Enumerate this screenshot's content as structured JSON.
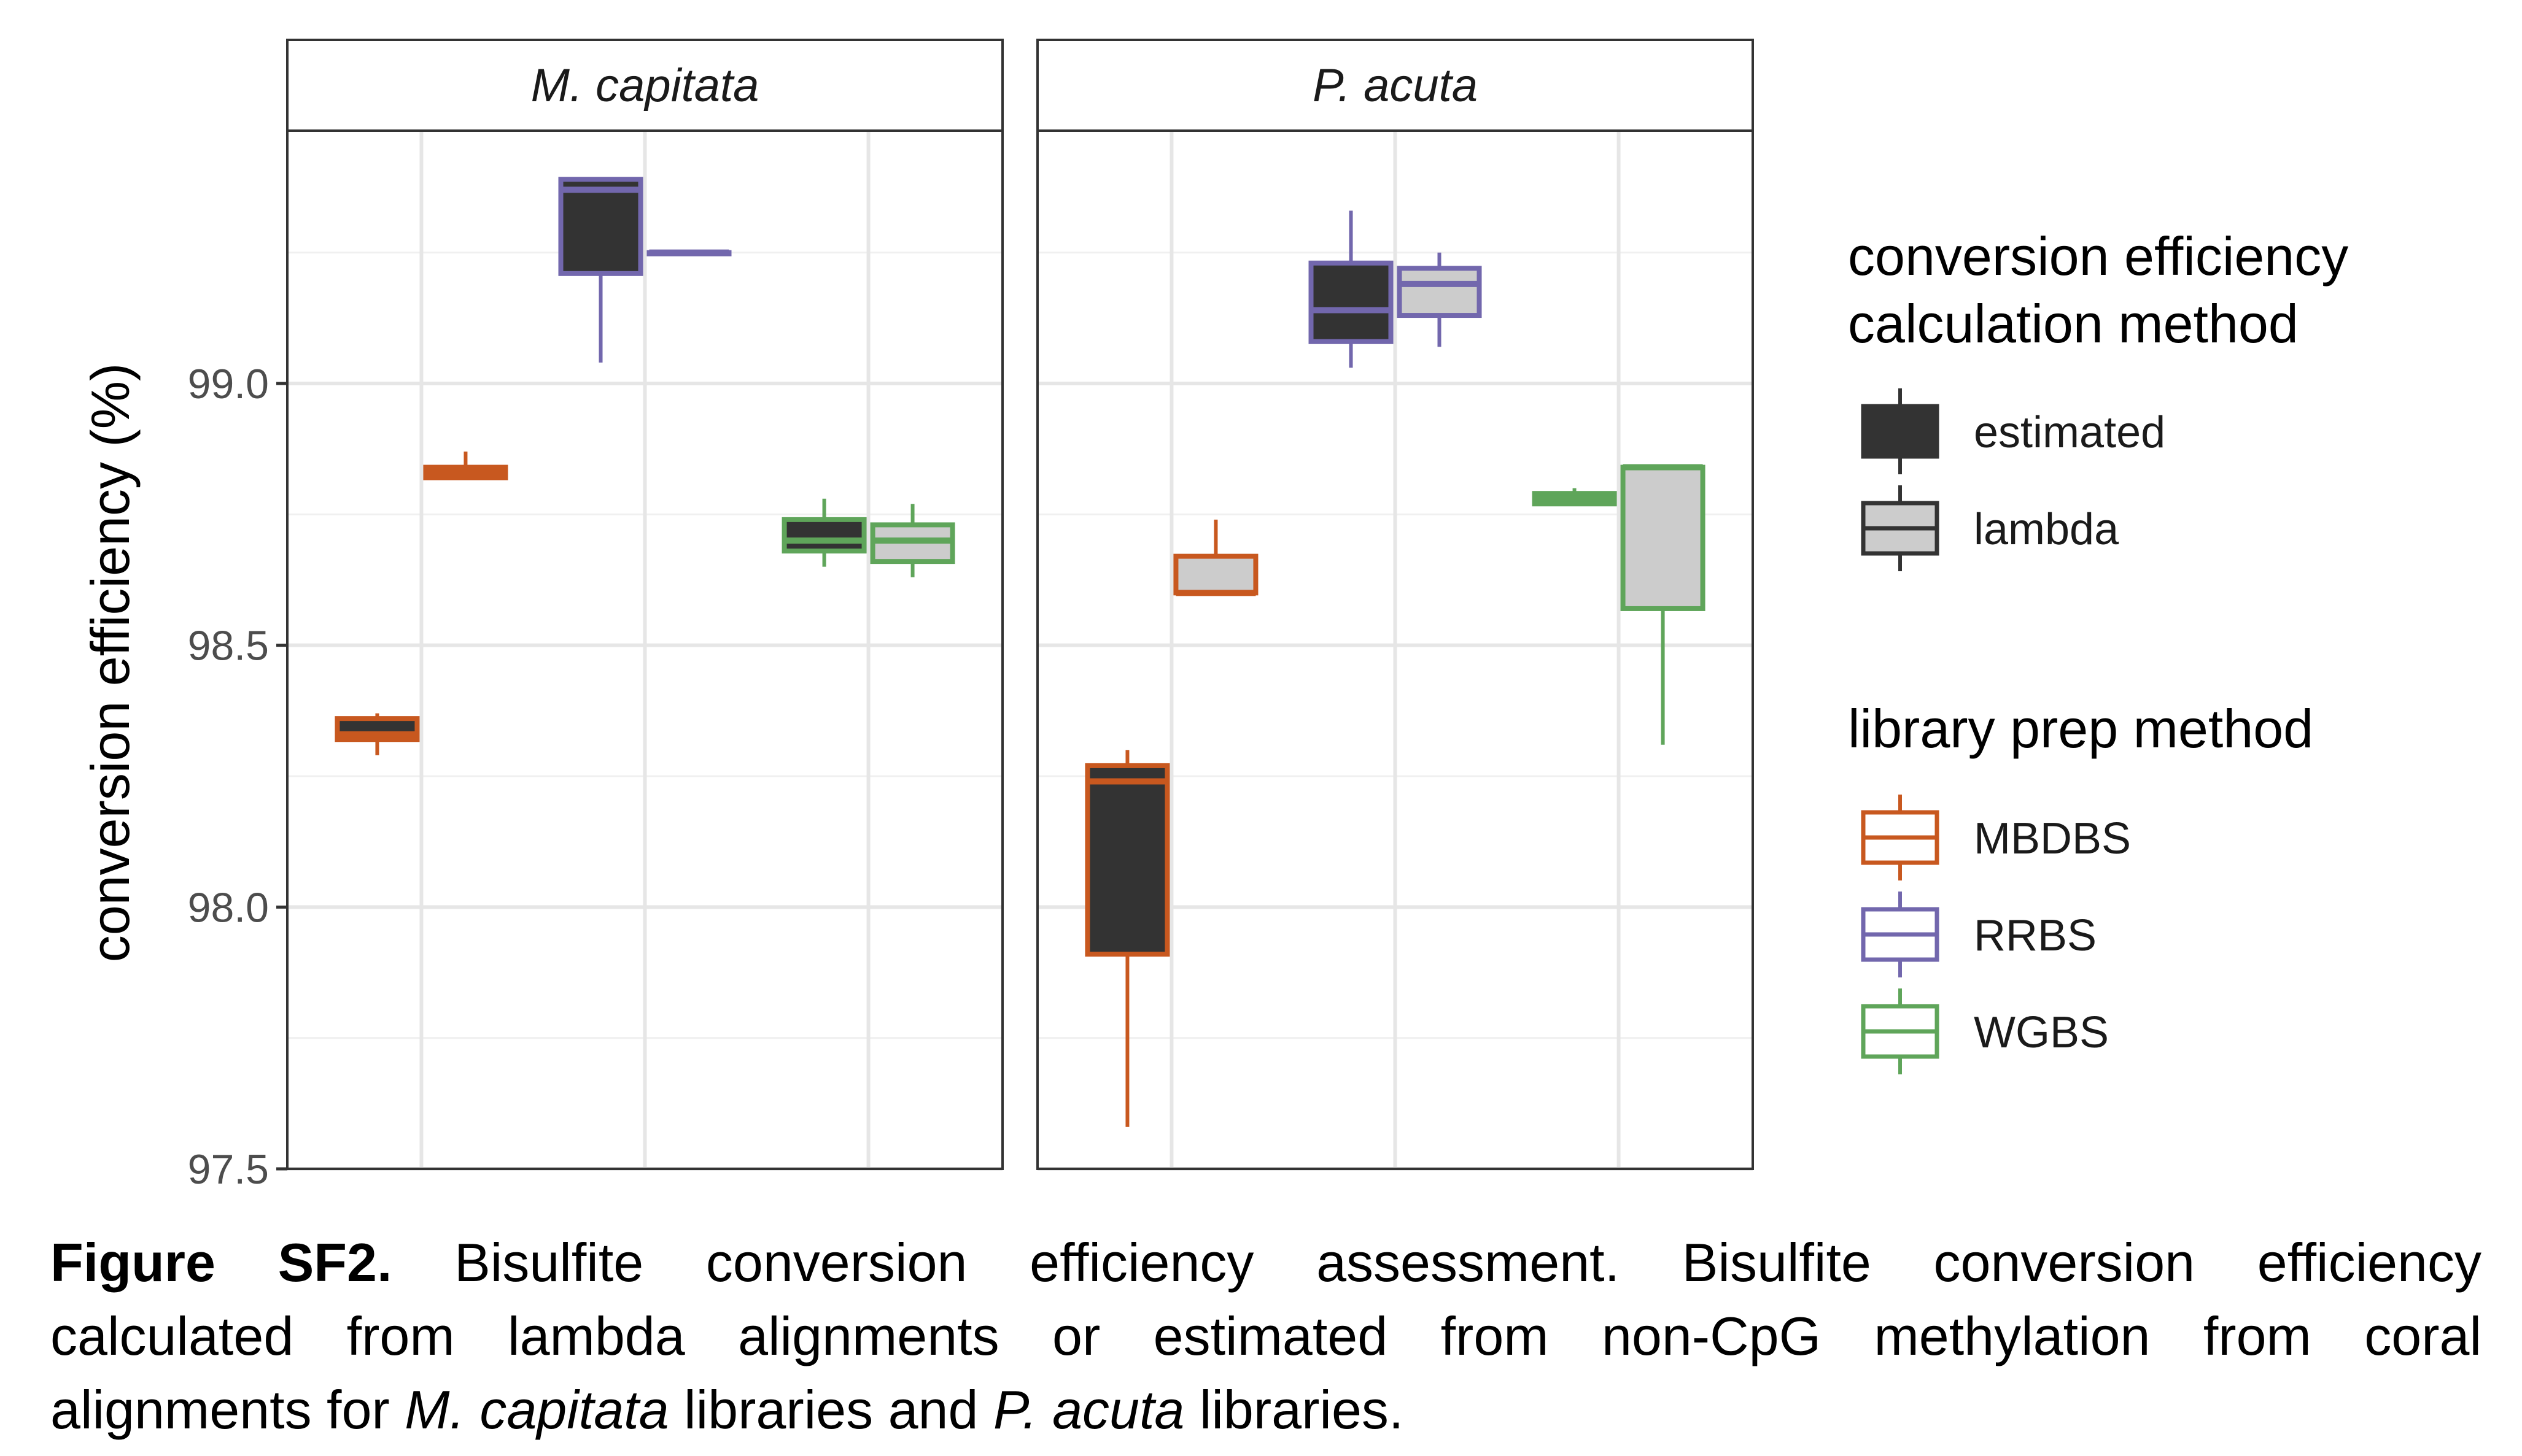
{
  "chart_data": {
    "type": "boxplot",
    "ylabel": "conversion efficiency (%)",
    "ylim": [
      97.5,
      99.5
    ],
    "yticks": [
      "97.5",
      "98.0",
      "98.5",
      "99.0"
    ],
    "grid": true,
    "legend_placement": "right",
    "panels": [
      {
        "name": "M. capitata",
        "groups": [
          {
            "prep": "MBDBS",
            "method": "estimated",
            "min": 98.29,
            "q1": 98.32,
            "median": 98.33,
            "q3": 98.36,
            "max": 98.37
          },
          {
            "prep": "MBDBS",
            "method": "lambda",
            "min": 98.82,
            "q1": 98.82,
            "median": 98.83,
            "q3": 98.84,
            "max": 98.87
          },
          {
            "prep": "RRBS",
            "method": "estimated",
            "min": 99.04,
            "q1": 99.21,
            "median": 99.37,
            "q3": 99.39,
            "max": 99.39
          },
          {
            "prep": "RRBS",
            "method": "lambda",
            "min": 99.25,
            "q1": 99.25,
            "median": 99.25,
            "q3": 99.25,
            "max": 99.25
          },
          {
            "prep": "WGBS",
            "method": "estimated",
            "min": 98.65,
            "q1": 98.68,
            "median": 98.7,
            "q3": 98.74,
            "max": 98.78
          },
          {
            "prep": "WGBS",
            "method": "lambda",
            "min": 98.63,
            "q1": 98.66,
            "median": 98.7,
            "q3": 98.73,
            "max": 98.77
          }
        ]
      },
      {
        "name": "P. acuta",
        "groups": [
          {
            "prep": "MBDBS",
            "method": "estimated",
            "min": 97.58,
            "q1": 97.91,
            "median": 98.24,
            "q3": 98.27,
            "max": 98.3
          },
          {
            "prep": "MBDBS",
            "method": "lambda",
            "min": 98.6,
            "q1": 98.6,
            "median": 98.6,
            "q3": 98.67,
            "max": 98.74
          },
          {
            "prep": "RRBS",
            "method": "estimated",
            "min": 99.03,
            "q1": 99.08,
            "median": 99.14,
            "q3": 99.23,
            "max": 99.33
          },
          {
            "prep": "RRBS",
            "method": "lambda",
            "min": 99.07,
            "q1": 99.13,
            "median": 99.19,
            "q3": 99.22,
            "max": 99.25
          },
          {
            "prep": "WGBS",
            "method": "estimated",
            "min": 98.77,
            "q1": 98.77,
            "median": 98.78,
            "q3": 98.79,
            "max": 98.8
          },
          {
            "prep": "WGBS",
            "method": "lambda",
            "min": 98.31,
            "q1": 98.57,
            "median": 98.84,
            "q3": 98.84,
            "max": 98.84
          }
        ]
      }
    ],
    "legend": {
      "fill_title_line1": "conversion efficiency",
      "fill_title_line2": "calculation method",
      "fill_items": [
        {
          "label": "estimated",
          "color": "#333333"
        },
        {
          "label": "lambda",
          "color": "#cccccc"
        }
      ],
      "color_title": "library prep method",
      "color_items": [
        {
          "label": "MBDBS",
          "color": "#c8581f"
        },
        {
          "label": "RRBS",
          "color": "#7267ad"
        },
        {
          "label": "WGBS",
          "color": "#5fa55a"
        }
      ]
    }
  },
  "caption": {
    "label": "Figure SF2.",
    "line1_rest": " Bisulfite conversion efficiency assessment. Bisulfite conversion efficiency",
    "line2": "calculated from lambda alignments or estimated from non-CpG methylation from coral",
    "line3_a": "alignments for ",
    "line3_species1": "M. capitata",
    "line3_b": " libraries and ",
    "line3_species2": "P. acuta",
    "line3_c": " libraries."
  }
}
